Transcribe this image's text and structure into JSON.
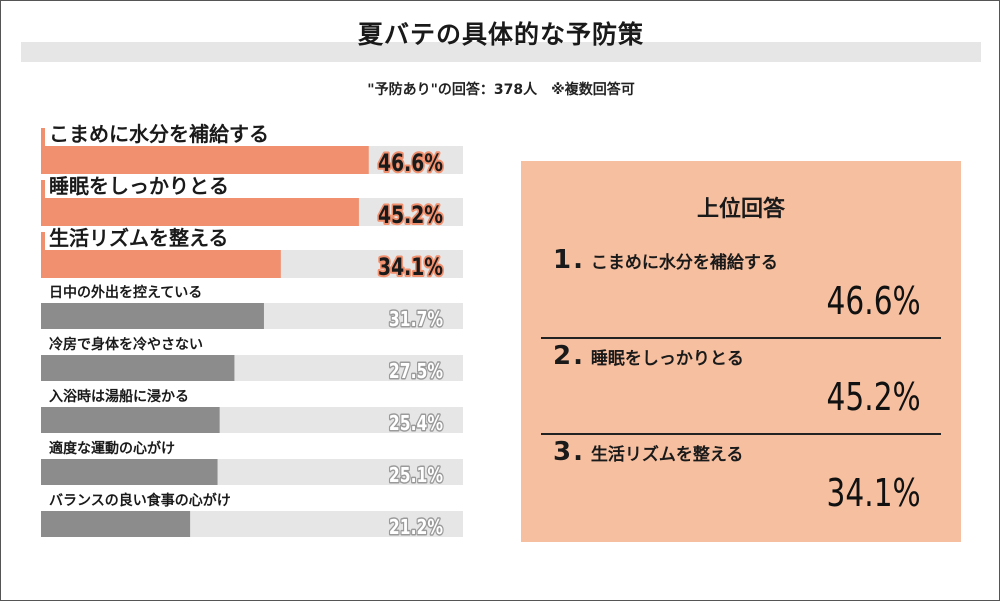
{
  "title": "夏バテの具体的な予防策",
  "subtitle": "\"予防あり\"の回答：378人　※複数回答可",
  "colors": {
    "highlight": "#f0906e",
    "normal": "#8c8c8c",
    "track": "#e6e6e6",
    "panel": "#f5bfa0"
  },
  "chart_data": {
    "type": "bar",
    "orientation": "horizontal",
    "categories": [
      "こまめに水分を補給する",
      "睡眠をしっかりとる",
      "生活リズムを整える",
      "日中の外出を控えている",
      "冷房で身体を冷やさない",
      "入浴時は湯船に浸かる",
      "適度な運動の心がけ",
      "バランスの良い食事の心がけ"
    ],
    "values": [
      46.6,
      45.2,
      34.1,
      31.7,
      27.5,
      25.4,
      25.1,
      21.2
    ],
    "value_labels": [
      "46.6%",
      "45.2%",
      "34.1%",
      "31.7%",
      "27.5%",
      "25.4%",
      "25.1%",
      "21.2%"
    ],
    "highlighted_count": 3,
    "xlim": [
      0,
      60
    ]
  },
  "top_answers": {
    "title": "上位回答",
    "items": [
      {
        "rank": "1",
        "label": "こまめに水分を補給する",
        "value": "46.6%"
      },
      {
        "rank": "2",
        "label": "睡眠をしっかりとる",
        "value": "45.2%"
      },
      {
        "rank": "3",
        "label": "生活リズムを整える",
        "value": "34.1%"
      }
    ]
  }
}
